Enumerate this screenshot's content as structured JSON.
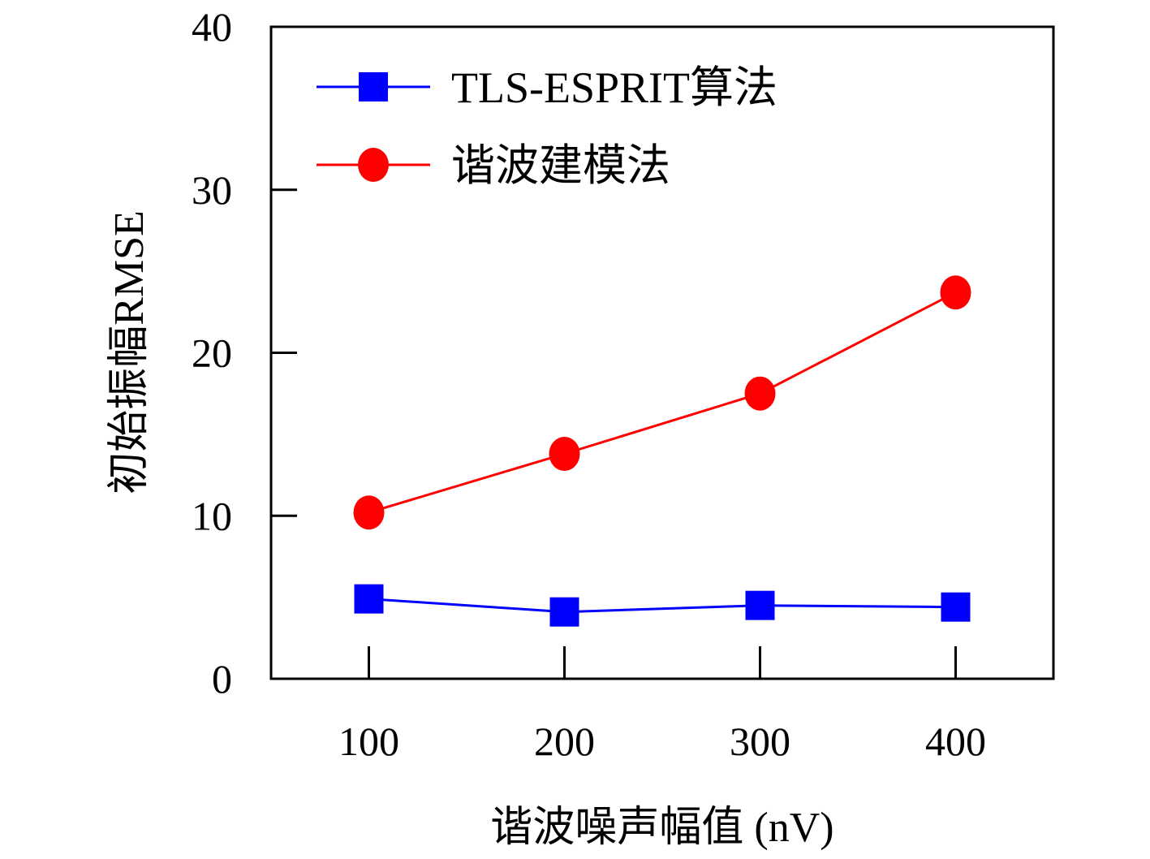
{
  "chart_data": {
    "type": "line",
    "title": "",
    "xlabel": "谐波噪声幅值 (nV)",
    "ylabel": "初始振幅RMSE",
    "x": [
      100,
      200,
      300,
      400
    ],
    "xticks": [
      "100",
      "200",
      "300",
      "400"
    ],
    "xlim": [
      50,
      450
    ],
    "yticks": [
      "0",
      "10",
      "20",
      "30",
      "40"
    ],
    "ylim": [
      0,
      40
    ],
    "grid": false,
    "legend_position": "top-left",
    "series": [
      {
        "name": "TLS-ESPRIT算法",
        "marker": "square",
        "color": "#0000ff",
        "values": [
          4.9,
          4.1,
          4.5,
          4.4
        ]
      },
      {
        "name": "谐波建模法",
        "marker": "circle",
        "color": "#ff0000",
        "values": [
          10.2,
          13.8,
          17.5,
          23.7
        ]
      }
    ]
  }
}
